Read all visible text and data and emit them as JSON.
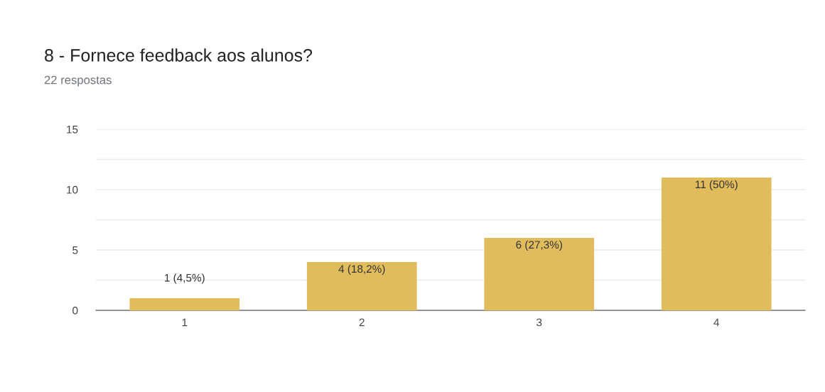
{
  "chart_data": {
    "type": "bar",
    "title": "8 - Fornece feedback aos alunos?",
    "subtitle": "22 respostas",
    "categories": [
      "1",
      "2",
      "3",
      "4"
    ],
    "values": [
      1,
      4,
      6,
      11
    ],
    "value_labels": [
      "1 (4,5%)",
      "4 (18,2%)",
      "6 (27,3%)",
      "11 (50%)"
    ],
    "color": "#e0bc5c",
    "ylim": [
      0,
      15
    ],
    "yticks": [
      0,
      {
        "value": 2.5,
        "label": null
      },
      5,
      {
        "value": 7.5,
        "label": null
      },
      10,
      {
        "value": 12.5,
        "label": null
      },
      15
    ],
    "grid": "y"
  }
}
